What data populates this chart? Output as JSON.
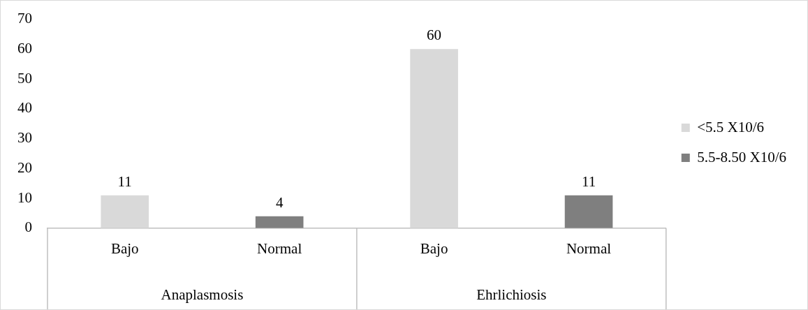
{
  "chart_data": {
    "type": "bar",
    "categories": [
      "Bajo",
      "Normal",
      "Bajo",
      "Normal"
    ],
    "series": [
      {
        "name": "<5.5 X10/6",
        "color": "#d9d9d9",
        "values": [
          11,
          null,
          60,
          null
        ]
      },
      {
        "name": "5.5-8.50 X10/6",
        "color": "#7f7f7f",
        "values": [
          null,
          4,
          null,
          11
        ]
      }
    ],
    "annotations": [
      "Anaplasmosis",
      "Ehrlichiosis"
    ],
    "ylim": [
      0,
      70
    ],
    "yticks": [
      0,
      10,
      20,
      30,
      40,
      50,
      60,
      70
    ],
    "grid": false,
    "legend": "right",
    "data_labels": true
  }
}
